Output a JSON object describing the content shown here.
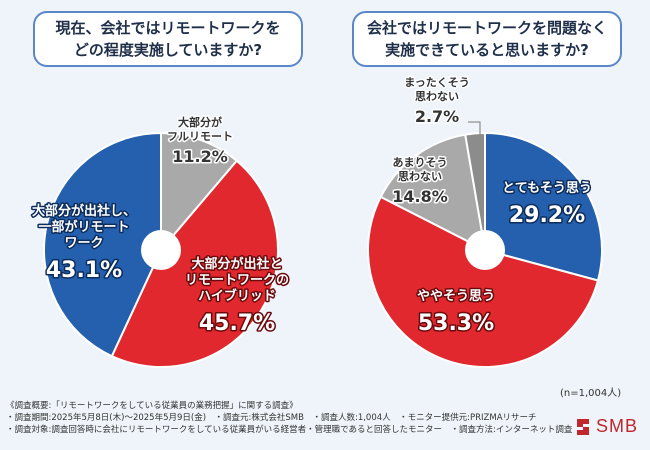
{
  "questions": [
    "現在、会社ではリモートワークを\nどの程度実施していますか?",
    "会社ではリモートワークを問題なく\n実施できていると思いますか?"
  ],
  "chart_data": [
    {
      "type": "pie",
      "title": "現在、会社ではリモートワークをどの程度実施していますか?",
      "slices": [
        {
          "label": "大部分がフルリモート",
          "value": 11.2,
          "display": "11.2%",
          "color": "#a9a9a9"
        },
        {
          "label": "大部分が出社とリモートワークのハイブリッド",
          "value": 45.7,
          "display": "45.7%",
          "color": "#e0282e"
        },
        {
          "label": "大部分が出社し、一部がリモートワーク",
          "value": 43.1,
          "display": "43.1%",
          "color": "#2460ad"
        }
      ]
    },
    {
      "type": "pie",
      "title": "会社ではリモートワークを問題なく実施できていると思いますか?",
      "slices": [
        {
          "label": "とてもそう思う",
          "value": 29.2,
          "display": "29.2%",
          "color": "#2460ad"
        },
        {
          "label": "ややそう思う",
          "value": 53.3,
          "display": "53.3%",
          "color": "#e0282e"
        },
        {
          "label": "あまりそう思わない",
          "value": 14.8,
          "display": "14.8%",
          "color": "#a9a9a9"
        },
        {
          "label": "まったくそう思わない",
          "value": 2.7,
          "display": "2.7%",
          "color": "#8c8c8c"
        }
      ]
    }
  ],
  "sample_size": "(n=1,004人)",
  "footer": [
    "《調査概要:「リモートワークをしている従業員の業務把握」に関する調査》",
    "・調査期間:2025年5月8日(木)〜2025年5月9日(金)　・調査元:株式会社SMB　・調査人数:1,004人　・モニター提供元:PRIZMAリサーチ",
    "・調査対象:調査回答時に会社にリモートワークをしている従業員がいる経営者・管理職であると回答したモニター　・調査方法:インターネット調査"
  ],
  "logo": {
    "text": "SMB",
    "color": "#c0262b"
  }
}
